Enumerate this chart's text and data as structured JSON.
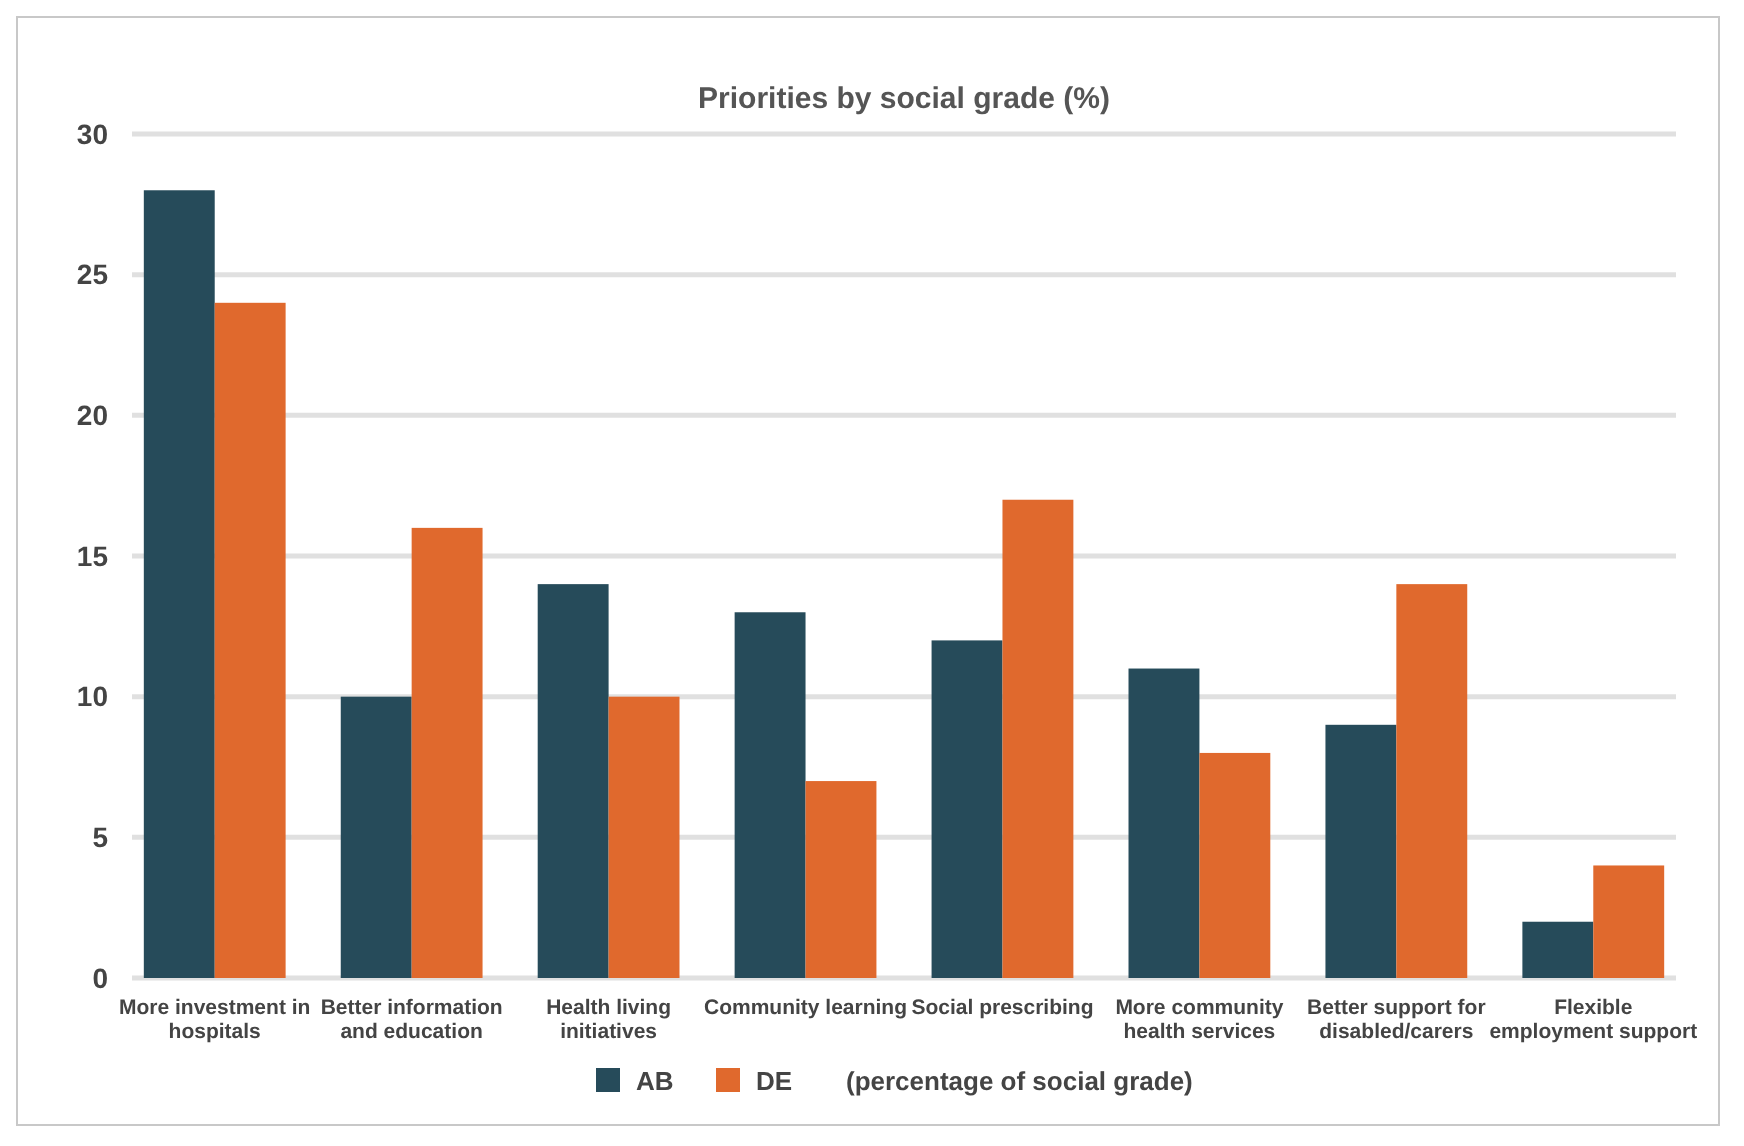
{
  "chart_data": {
    "type": "bar",
    "title": "Priorities by social grade (%)",
    "categories": [
      "More investment in hospitals",
      "Better information and education",
      "Health living initiatives",
      "Community learning",
      "Social prescribing",
      "More community health services",
      "Better support for disabled/carers",
      "Flexible employment support"
    ],
    "series": [
      {
        "name": "AB",
        "color": "#264b5a",
        "values": [
          28,
          10,
          14,
          13,
          12,
          11,
          9,
          2
        ]
      },
      {
        "name": "DE",
        "color": "#e0692d",
        "values": [
          24,
          16,
          10,
          7,
          17,
          8,
          14,
          4
        ]
      }
    ],
    "ylim": [
      0,
      30
    ],
    "yticks": [
      0,
      5,
      10,
      15,
      20,
      25,
      30
    ],
    "grid": "y",
    "legend": "bottom",
    "annotations": [
      "(percentage of social grade)"
    ]
  }
}
